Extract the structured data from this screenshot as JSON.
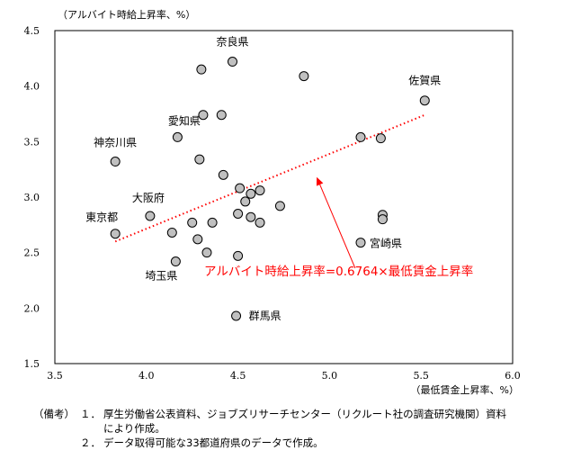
{
  "chart_data": {
    "type": "scatter",
    "ylabel": "（アルバイト時給上昇率、%）",
    "xlabel": "（最低賃金上昇率、%）",
    "xlim": [
      3.5,
      6.0
    ],
    "ylim": [
      1.5,
      4.5
    ],
    "x_ticks": [
      "3.5",
      "4.0",
      "4.5",
      "5.0",
      "5.5",
      "6.0"
    ],
    "y_ticks": [
      "1.5",
      "2.0",
      "2.5",
      "3.0",
      "3.5",
      "4.0",
      "4.5"
    ],
    "points": [
      {
        "x": 4.47,
        "y": 4.22,
        "label": "奈良県"
      },
      {
        "x": 4.3,
        "y": 4.15,
        "label": ""
      },
      {
        "x": 4.86,
        "y": 4.09,
        "label": ""
      },
      {
        "x": 5.52,
        "y": 3.87,
        "label": "佐賀県"
      },
      {
        "x": 4.31,
        "y": 3.74,
        "label": "愛知県"
      },
      {
        "x": 4.41,
        "y": 3.74,
        "label": ""
      },
      {
        "x": 4.17,
        "y": 3.54,
        "label": ""
      },
      {
        "x": 5.17,
        "y": 3.54,
        "label": ""
      },
      {
        "x": 5.28,
        "y": 3.53,
        "label": ""
      },
      {
        "x": 3.83,
        "y": 3.32,
        "label": "神奈川県"
      },
      {
        "x": 4.29,
        "y": 3.34,
        "label": ""
      },
      {
        "x": 4.42,
        "y": 3.2,
        "label": ""
      },
      {
        "x": 4.51,
        "y": 3.08,
        "label": ""
      },
      {
        "x": 4.62,
        "y": 3.06,
        "label": ""
      },
      {
        "x": 4.57,
        "y": 3.03,
        "label": ""
      },
      {
        "x": 4.54,
        "y": 2.96,
        "label": ""
      },
      {
        "x": 4.73,
        "y": 2.92,
        "label": ""
      },
      {
        "x": 4.02,
        "y": 2.83,
        "label": "大阪府"
      },
      {
        "x": 4.5,
        "y": 2.85,
        "label": ""
      },
      {
        "x": 4.57,
        "y": 2.82,
        "label": ""
      },
      {
        "x": 5.29,
        "y": 2.84,
        "label": ""
      },
      {
        "x": 5.29,
        "y": 2.8,
        "label": ""
      },
      {
        "x": 4.25,
        "y": 2.77,
        "label": ""
      },
      {
        "x": 4.36,
        "y": 2.77,
        "label": ""
      },
      {
        "x": 4.62,
        "y": 2.77,
        "label": ""
      },
      {
        "x": 3.83,
        "y": 2.67,
        "label": "東京都"
      },
      {
        "x": 4.14,
        "y": 2.68,
        "label": ""
      },
      {
        "x": 4.28,
        "y": 2.62,
        "label": ""
      },
      {
        "x": 5.17,
        "y": 2.59,
        "label": "宮崎県"
      },
      {
        "x": 4.33,
        "y": 2.5,
        "label": ""
      },
      {
        "x": 4.5,
        "y": 2.47,
        "label": ""
      },
      {
        "x": 4.16,
        "y": 2.42,
        "label": "埼玉県"
      },
      {
        "x": 4.49,
        "y": 1.93,
        "label": "群馬県"
      }
    ],
    "trendline": {
      "x": [
        3.83,
        5.52
      ],
      "y": [
        2.6,
        3.74
      ],
      "style": "dotted",
      "color": "#ff0000"
    },
    "annotation": {
      "text": "アルバイト時給上昇率=0.6764×最低賃金上昇率",
      "arrow_from": [
        5.14,
        2.36
      ],
      "arrow_to": [
        4.93,
        3.18
      ]
    }
  },
  "notes": {
    "head": "（備考）",
    "items": [
      {
        "num": "１．",
        "text": "厚生労働省公表資料、ジョブズリサーチセンター（リクルート社の調査研究機関）資料",
        "cont": "により作成。"
      },
      {
        "num": "２．",
        "text": "データ取得可能な33都道府県のデータで作成。"
      }
    ]
  },
  "colors": {
    "marker_fill": "#c0c0c0",
    "trend": "#ff0000",
    "annotation": "#ff0000"
  }
}
